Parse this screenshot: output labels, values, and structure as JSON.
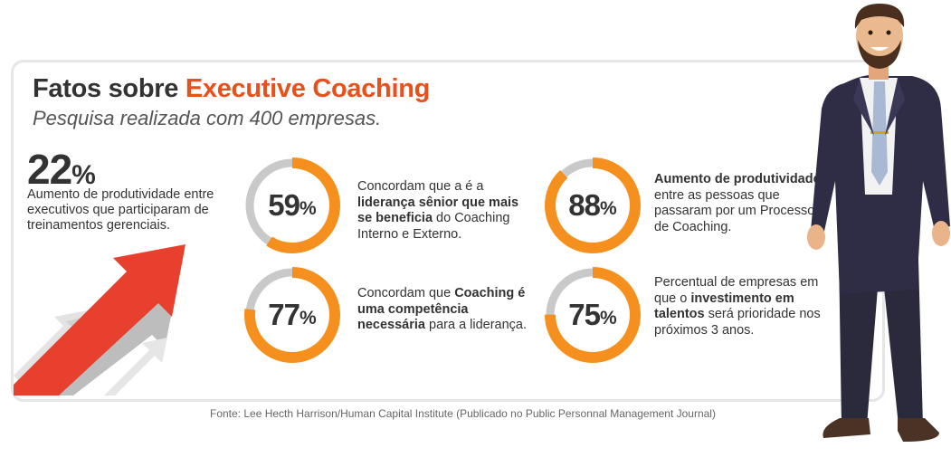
{
  "title": {
    "prefix": "Fatos sobre ",
    "accent": "Executive Coaching"
  },
  "subtitle": "Pesquisa realizada com 400 empresas.",
  "highlight": {
    "value": "22",
    "unit": "%",
    "description": "Aumento de produtividade entre executivos que participaram de treinamentos gerenciais."
  },
  "stats": [
    {
      "value": 59,
      "unit": "%",
      "parts": [
        {
          "text": "Concordam que a é a ",
          "bold": false
        },
        {
          "text": "liderança sênior que mais se beneficia",
          "bold": true
        },
        {
          "text": " do Coaching Interno e Externo.",
          "bold": false
        }
      ]
    },
    {
      "value": 77,
      "unit": "%",
      "parts": [
        {
          "text": "Concordam que ",
          "bold": false
        },
        {
          "text": "Coaching é uma competência necessária",
          "bold": true
        },
        {
          "text": " para a liderança.",
          "bold": false
        }
      ]
    },
    {
      "value": 88,
      "unit": "%",
      "parts": [
        {
          "text": "Aumento de produtividade",
          "bold": true
        },
        {
          "text": " entre as pessoas que passaram por um Processo de Coaching.",
          "bold": false
        }
      ]
    },
    {
      "value": 75,
      "unit": "%",
      "parts": [
        {
          "text": "Percentual de empresas em que o ",
          "bold": false
        },
        {
          "text": "investimento em talentos",
          "bold": true
        },
        {
          "text": " será prioridade nos próximos 3 anos.",
          "bold": false
        }
      ]
    }
  ],
  "source": "Fonte: Lee Hecth Harrison/Human Capital Institute (Publicado no Public Personnal Management Journal)",
  "colors": {
    "accent": "#e8501c",
    "ring": "#f5901e",
    "ring_track": "#c9c9c9",
    "arrow_red": "#e8402f",
    "arrow_gray": "#cfcfcf"
  }
}
